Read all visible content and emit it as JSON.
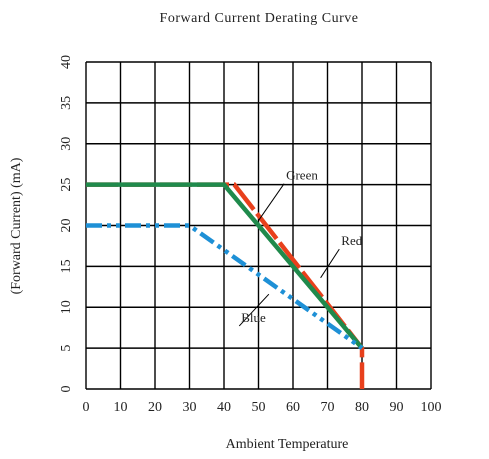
{
  "chart_data": {
    "type": "line",
    "title": "Forward Current Derating Curve",
    "xlabel": "Ambient Temperature",
    "ylabel": "(Forward Current) (mA)",
    "xlim": [
      0,
      100
    ],
    "ylim": [
      0,
      40
    ],
    "x_ticks": [
      0,
      10,
      20,
      30,
      40,
      50,
      60,
      70,
      80,
      90,
      100
    ],
    "y_ticks": [
      0,
      5,
      10,
      15,
      20,
      25,
      30,
      35,
      40
    ],
    "grid": true,
    "series": [
      {
        "name": "Red",
        "color": "#e8401c",
        "style": "dashed",
        "x": [
          0,
          43,
          80,
          80
        ],
        "y": [
          25,
          25,
          5,
          0
        ]
      },
      {
        "name": "Green",
        "color": "#1f8a4c",
        "style": "solid",
        "x": [
          0,
          40,
          80
        ],
        "y": [
          25,
          25,
          5
        ]
      },
      {
        "name": "Blue",
        "color": "#1e90d6",
        "style": "dash-dot-dot",
        "x": [
          0,
          30,
          80
        ],
        "y": [
          20,
          20,
          5
        ]
      }
    ],
    "annotations": [
      {
        "text": "Green",
        "label_x": 58,
        "label_y": 25.6,
        "arrow_to_x": 50,
        "arrow_to_y": 20.6
      },
      {
        "text": "Red",
        "label_x": 74,
        "label_y": 17.6,
        "arrow_to_x": 68,
        "arrow_to_y": 13.6
      },
      {
        "text": "Blue",
        "label_x": 45,
        "label_y": 8.2,
        "arrow_to_x": 53,
        "arrow_to_y": 11.6
      }
    ]
  }
}
